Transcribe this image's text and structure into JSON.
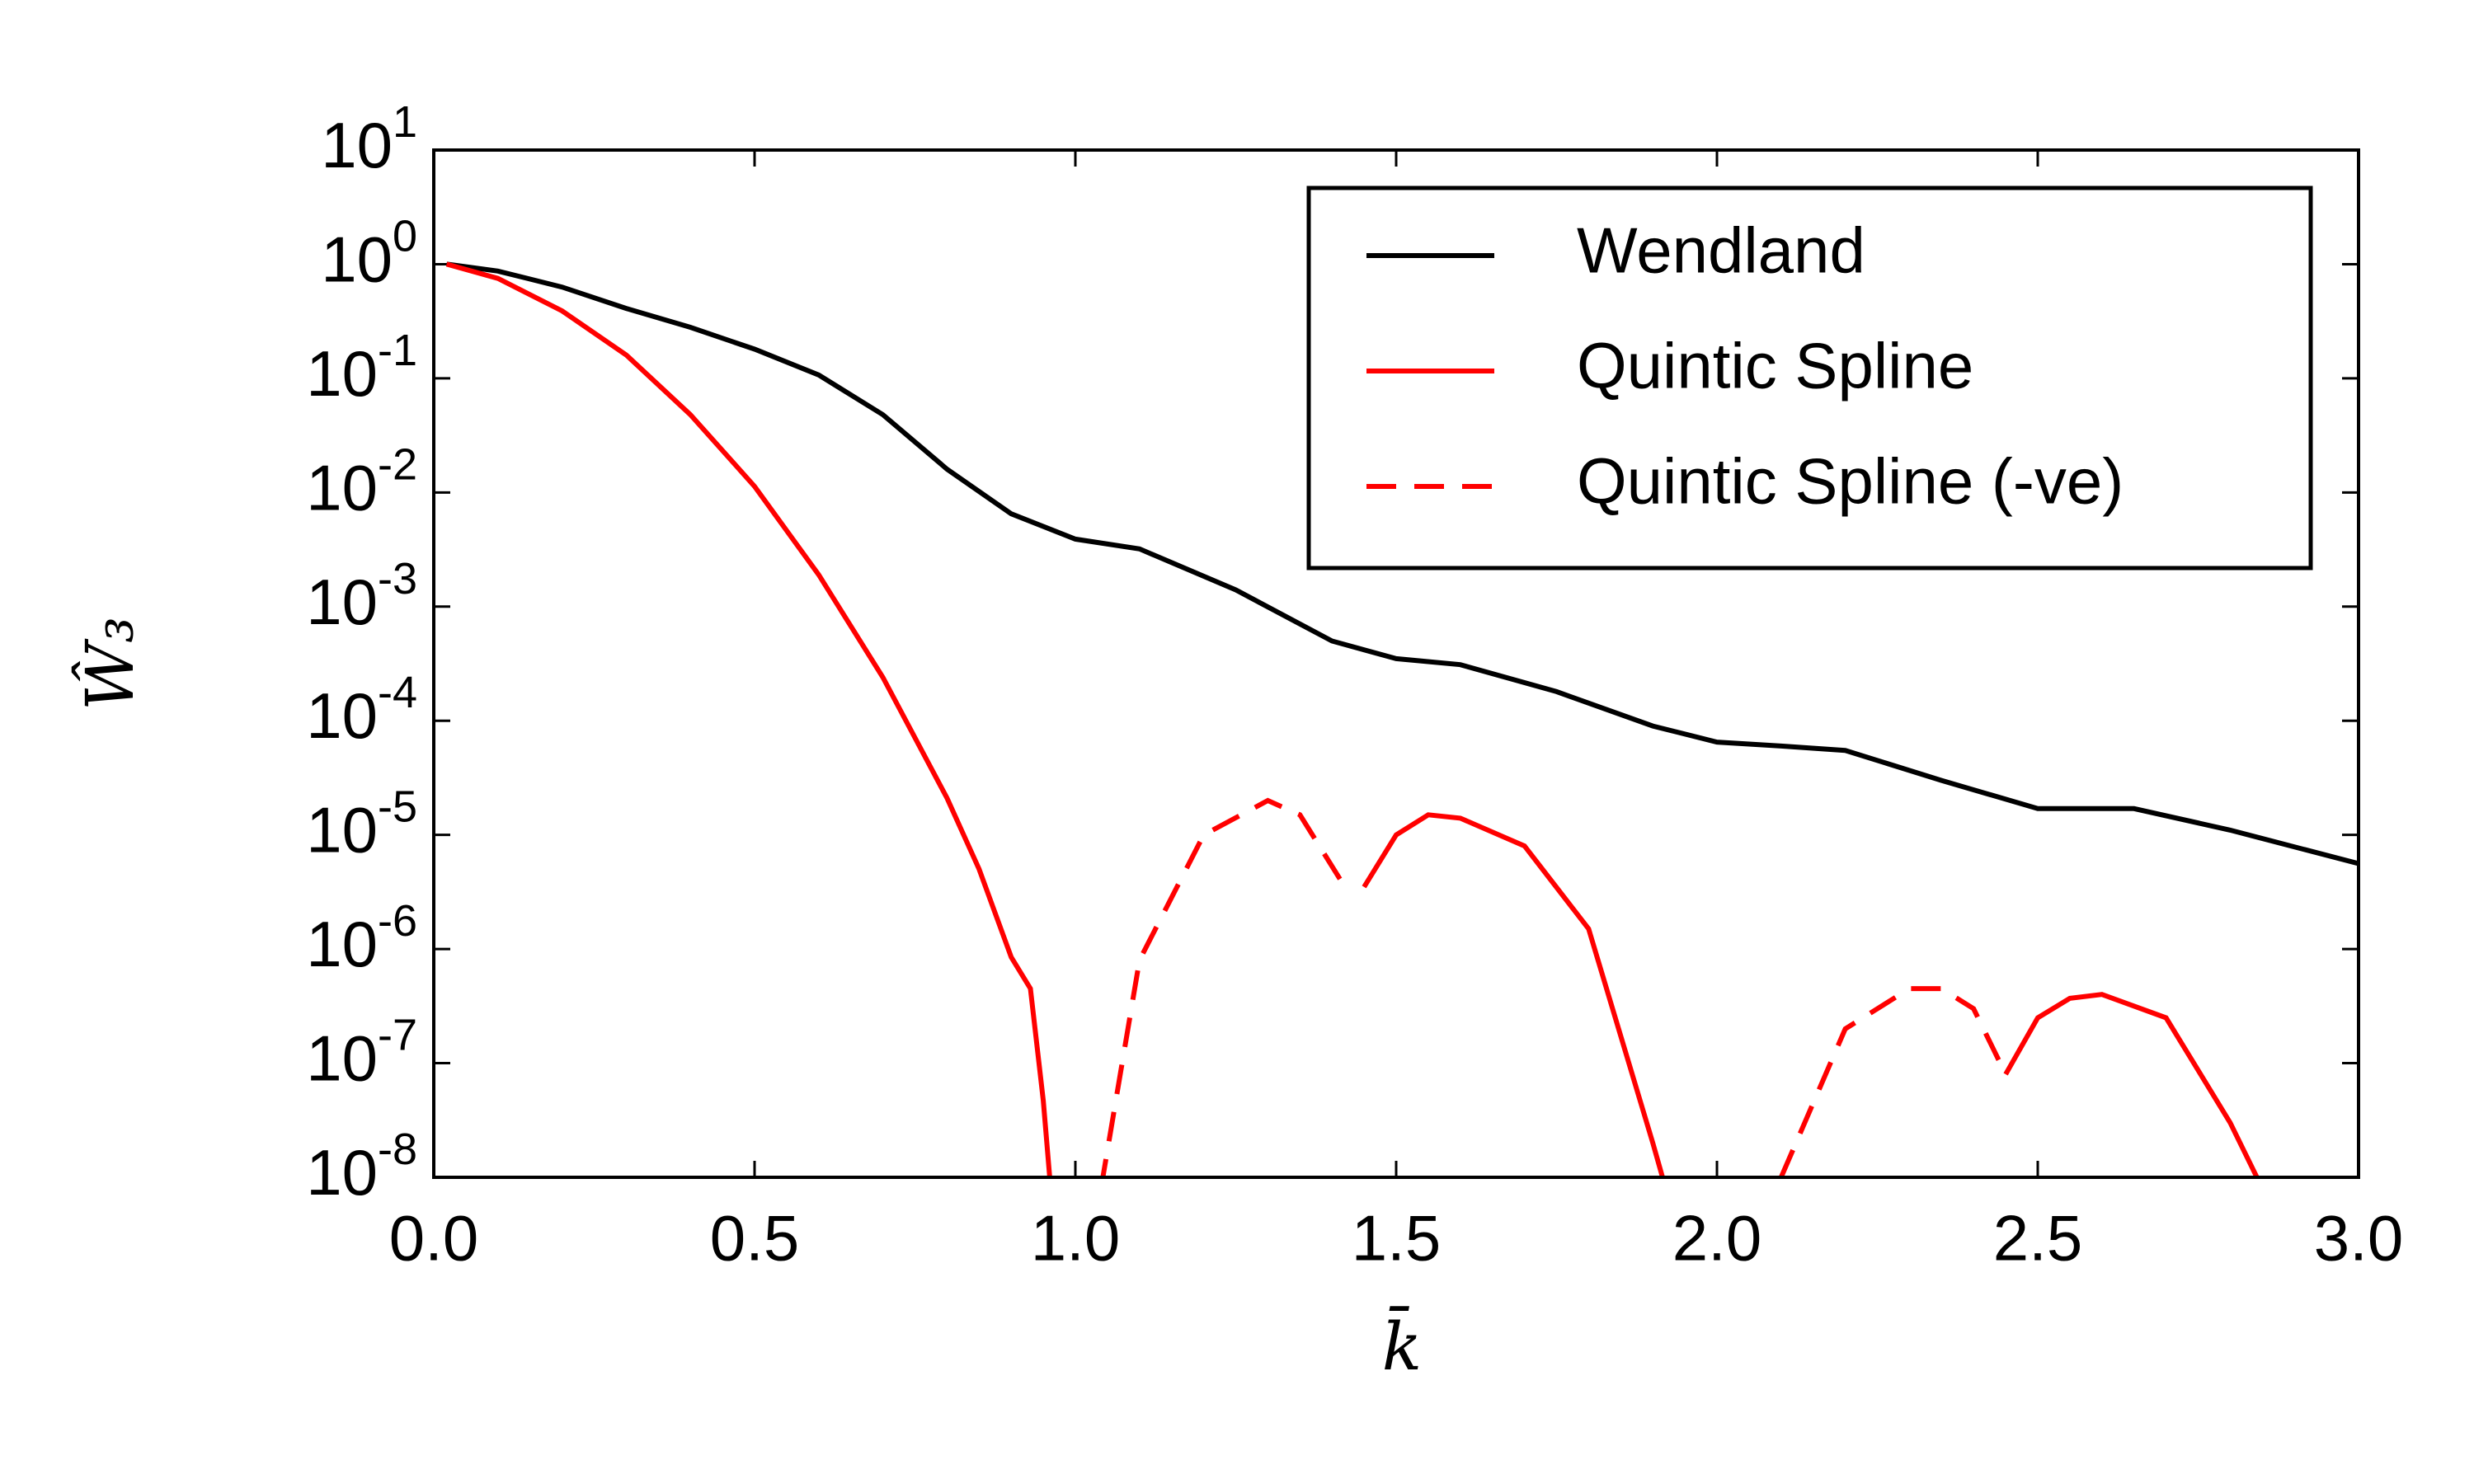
{
  "chart_data": {
    "type": "line",
    "xlabel": "k̄",
    "ylabel": "Ŵ₃",
    "xlim": [
      0,
      3
    ],
    "ylim": [
      1e-08,
      10
    ],
    "yscale": "log",
    "xticks": [
      {
        "value": 0,
        "label": "0.0"
      },
      0.5,
      {
        "value": 1,
        "label": "1.0"
      },
      1.5,
      {
        "value": 2,
        "label": "2.0"
      },
      2.5,
      {
        "value": 3,
        "label": "3.0"
      }
    ],
    "yticks": [
      {
        "value": 1e-08,
        "label": "10^-8"
      },
      {
        "value": 1e-07,
        "label": "10^-7"
      },
      {
        "value": 1e-06,
        "label": "10^-6"
      },
      {
        "value": 1e-05,
        "label": "10^-5"
      },
      {
        "value": 0.0001,
        "label": "10^-4"
      },
      {
        "value": 0.001,
        "label": "10^-3"
      },
      {
        "value": 0.01,
        "label": "10^-2"
      },
      {
        "value": 0.1,
        "label": "10^-1"
      },
      {
        "value": 1,
        "label": "10^0"
      },
      {
        "value": 10,
        "label": "10^1"
      }
    ],
    "legend": "upper right",
    "series": [
      {
        "name": "Wendland",
        "color": "#000000",
        "linestyle": "solid",
        "x": [
          0.02,
          0.1,
          0.2,
          0.3,
          0.4,
          0.5,
          0.6,
          0.7,
          0.8,
          0.9,
          1.0,
          1.1,
          1.25,
          1.4,
          1.5,
          1.6,
          1.75,
          1.9,
          2.0,
          2.1,
          2.2,
          2.35,
          2.5,
          2.65,
          2.8,
          3.0
        ],
        "values": [
          1,
          0.87,
          0.63,
          0.41,
          0.28,
          0.18,
          0.107,
          0.048,
          0.016,
          0.0065,
          0.0039,
          0.0032,
          0.0014,
          0.0005,
          0.00035,
          0.00031,
          0.00018,
          9e-05,
          6.5e-05,
          6e-05,
          5.5e-05,
          3e-05,
          1.7e-05,
          1.7e-05,
          1.1e-05,
          5.6e-06
        ]
      },
      {
        "name": "Quintic Spline",
        "color": "#ff0000",
        "linestyle": "solid",
        "x": [
          0.02,
          0.1,
          0.2,
          0.3,
          0.4,
          0.5,
          0.6,
          0.7,
          0.8,
          0.85,
          0.9,
          0.93,
          0.95,
          0.96,
          null,
          1.45,
          1.5,
          1.55,
          1.6,
          1.7,
          1.8,
          1.9,
          1.92,
          null,
          2.45,
          2.5,
          2.55,
          2.6,
          2.7,
          2.8,
          2.85
        ],
        "values": [
          1,
          0.75,
          0.39,
          0.16,
          0.048,
          0.0113,
          0.0019,
          0.00024,
          2.1e-05,
          5e-06,
          8.5e-07,
          4.5e-07,
          4.7e-08,
          1e-08,
          null,
          3.5e-06,
          1e-05,
          1.5e-05,
          1.4e-05,
          8e-06,
          1.5e-06,
          2e-08,
          8e-09,
          null,
          8e-08,
          2.5e-07,
          3.7e-07,
          4e-07,
          2.5e-07,
          3e-08,
          8e-09
        ]
      },
      {
        "name": "Quintic Spline (-ve)",
        "color": "#ff0000",
        "linestyle": "dashed",
        "x": [
          1.04,
          1.1,
          1.2,
          1.3,
          1.35,
          1.42,
          null,
          2.1,
          2.2,
          2.3,
          2.35,
          2.4,
          2.45
        ],
        "values": [
          8e-09,
          8e-07,
          1e-05,
          2e-05,
          1.5e-05,
          3.5e-06,
          null,
          1e-08,
          2e-07,
          4.5e-07,
          4.5e-07,
          3e-07,
          8e-08
        ]
      }
    ]
  }
}
